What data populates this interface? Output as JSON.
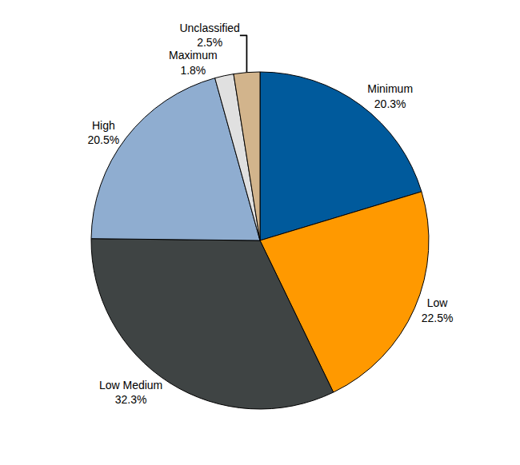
{
  "chart_data": {
    "type": "pie",
    "categories": [
      "Minimum",
      "Low",
      "Low Medium",
      "High",
      "Maximum",
      "Unclassified"
    ],
    "values": [
      20.3,
      22.5,
      32.3,
      20.5,
      1.8,
      2.5
    ],
    "value_labels": [
      "20.3%",
      "22.5%",
      "32.3%",
      "20.5%",
      "1.8%",
      "2.5%"
    ],
    "colors": [
      "#005a9c",
      "#ff9900",
      "#3f4444",
      "#8fadd0",
      "#e0e0e0",
      "#d2b48c"
    ],
    "data_labels": true
  }
}
